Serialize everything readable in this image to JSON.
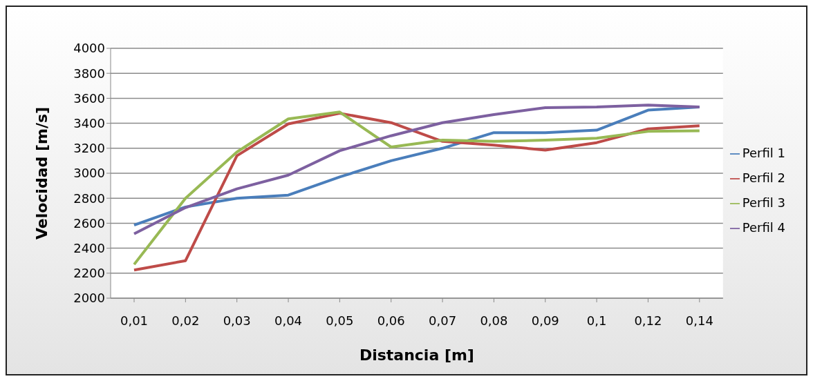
{
  "chart_data": {
    "type": "line",
    "xlabel": "Distancia [m]",
    "ylabel": "Velocidad [m/s]",
    "categories": [
      "0,01",
      "0,02",
      "0,03",
      "0,04",
      "0,05",
      "0,06",
      "0,07",
      "0,08",
      "0,09",
      "0,1",
      "0,12",
      "0,14"
    ],
    "series": [
      {
        "name": "Perfil 1",
        "color": "#4a7ebb",
        "values": [
          2585,
          2730,
          2800,
          2825,
          2970,
          3100,
          3200,
          3325,
          3325,
          3345,
          3505,
          3530
        ]
      },
      {
        "name": "Perfil 2",
        "color": "#be4b48",
        "values": [
          2225,
          2300,
          3140,
          3395,
          3480,
          3405,
          3255,
          3225,
          3185,
          3245,
          3355,
          3380
        ]
      },
      {
        "name": "Perfil 3",
        "color": "#98b954",
        "values": [
          2270,
          2800,
          3170,
          3435,
          3490,
          3210,
          3265,
          3255,
          3265,
          3280,
          3335,
          3340
        ]
      },
      {
        "name": "Perfil 4",
        "color": "#7d60a0",
        "values": [
          2515,
          2725,
          2875,
          2985,
          3180,
          3300,
          3405,
          3470,
          3525,
          3530,
          3545,
          3530
        ]
      }
    ],
    "ylim": [
      2000,
      4000
    ],
    "yticks": [
      2000,
      2200,
      2400,
      2600,
      2800,
      3000,
      3200,
      3400,
      3600,
      3800,
      4000
    ],
    "grid": "y",
    "legend": "right",
    "marker": "none",
    "line_style": "solid"
  }
}
